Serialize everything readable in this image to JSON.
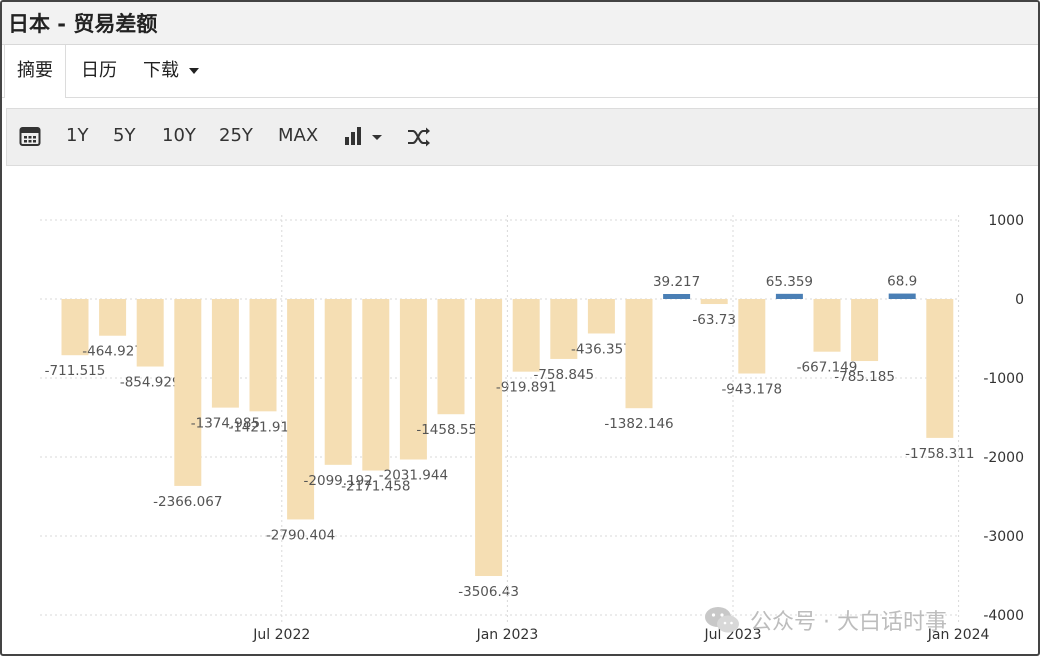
{
  "header": {
    "title": "日本 - 贸易差额"
  },
  "tabs": [
    {
      "label": "摘要"
    },
    {
      "label": "日历"
    },
    {
      "label": "下载"
    }
  ],
  "toolbar": {
    "calendar_icon": "calendar-icon",
    "ranges": [
      "1Y",
      "5Y",
      "10Y",
      "25Y",
      "MAX"
    ],
    "chart_type_icon": "bar-chart-icon",
    "shuffle_icon": "shuffle-icon"
  },
  "colors": {
    "negative": "#f5deb3",
    "positive": "#4a7fb5",
    "grid": "#d9d9d9",
    "text": "#555555"
  },
  "chart_data": {
    "type": "bar",
    "values": [
      -711.515,
      -464.927,
      -854.929,
      -2366.067,
      -1374.985,
      -1421.915,
      -2790.404,
      -2099.192,
      -2171.458,
      -2031.944,
      -1458.559,
      -3506.43,
      -919.891,
      -758.845,
      -436.357,
      -1382.146,
      39.217,
      -63.73,
      -943.178,
      65.359,
      -667.149,
      -785.185,
      68.9,
      -1758.311
    ],
    "x_tick_labels": [
      "Jul 2022",
      "Jan 2023",
      "Jul 2023",
      "Jan 2024"
    ],
    "y_ticks": [
      1000,
      0,
      -1000,
      -2000,
      -3000,
      -4000
    ],
    "ylim": [
      -4000,
      1000
    ],
    "grid": true,
    "y_axis_side": "right"
  },
  "watermark": {
    "text": "公众号 · 大白话时事"
  }
}
